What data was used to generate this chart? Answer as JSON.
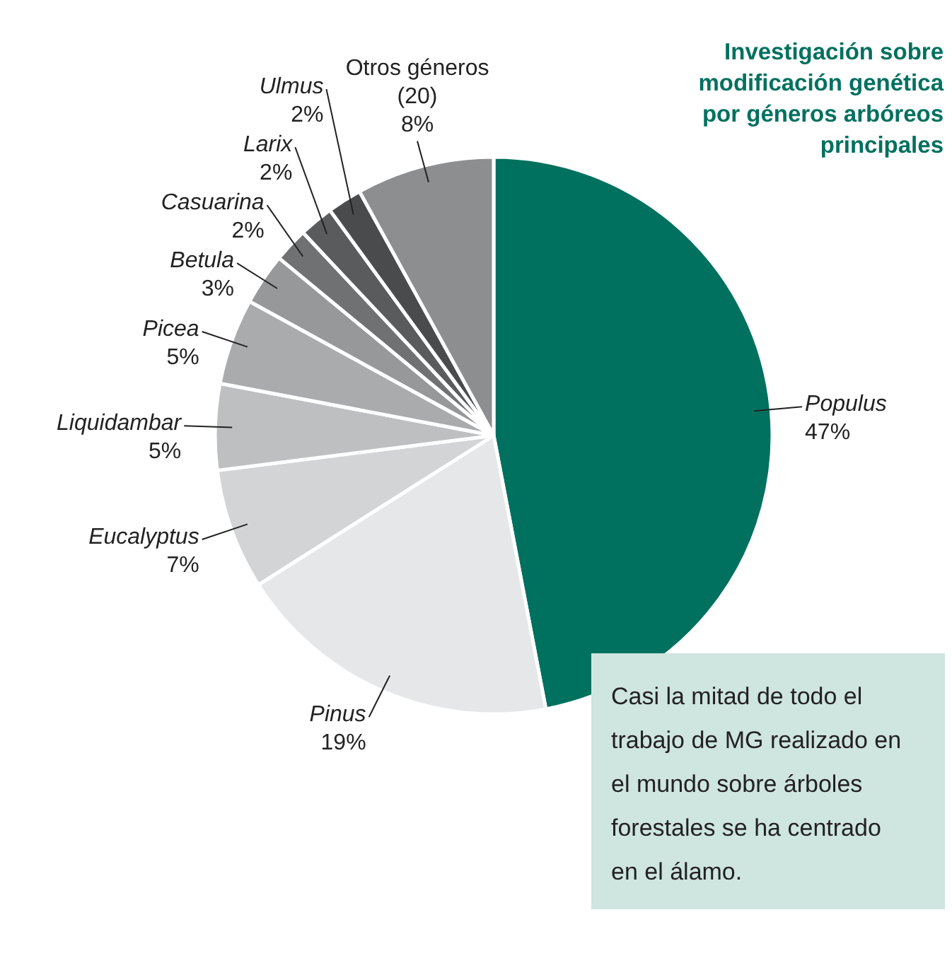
{
  "chart_data": {
    "type": "pie",
    "title": "Investigación sobre modificación genética por géneros arbóreos principales",
    "categories": [
      "Populus",
      "Pinus",
      "Eucalyptus",
      "Liquidambar",
      "Picea",
      "Betula",
      "Casuarina",
      "Larix",
      "Ulmus",
      "Otros géneros (20)"
    ],
    "values": [
      47,
      19,
      7,
      5,
      5,
      3,
      2,
      2,
      2,
      8
    ],
    "colors": [
      "#00705f",
      "#e6e7e8",
      "#d3d4d6",
      "#bebfc1",
      "#aaabad",
      "#97989a",
      "#707173",
      "#5a5b5d",
      "#4a4b4d",
      "#8d8e90"
    ],
    "value_labels": [
      "47%",
      "19%",
      "7%",
      "5%",
      "5%",
      "3%",
      "2%",
      "2%",
      "2%",
      "8%"
    ],
    "annotations": [
      "Casi la mitad de todo el trabajo de MG realizado en el mundo sobre árboles forestales se ha centrado en el álamo."
    ]
  }
}
